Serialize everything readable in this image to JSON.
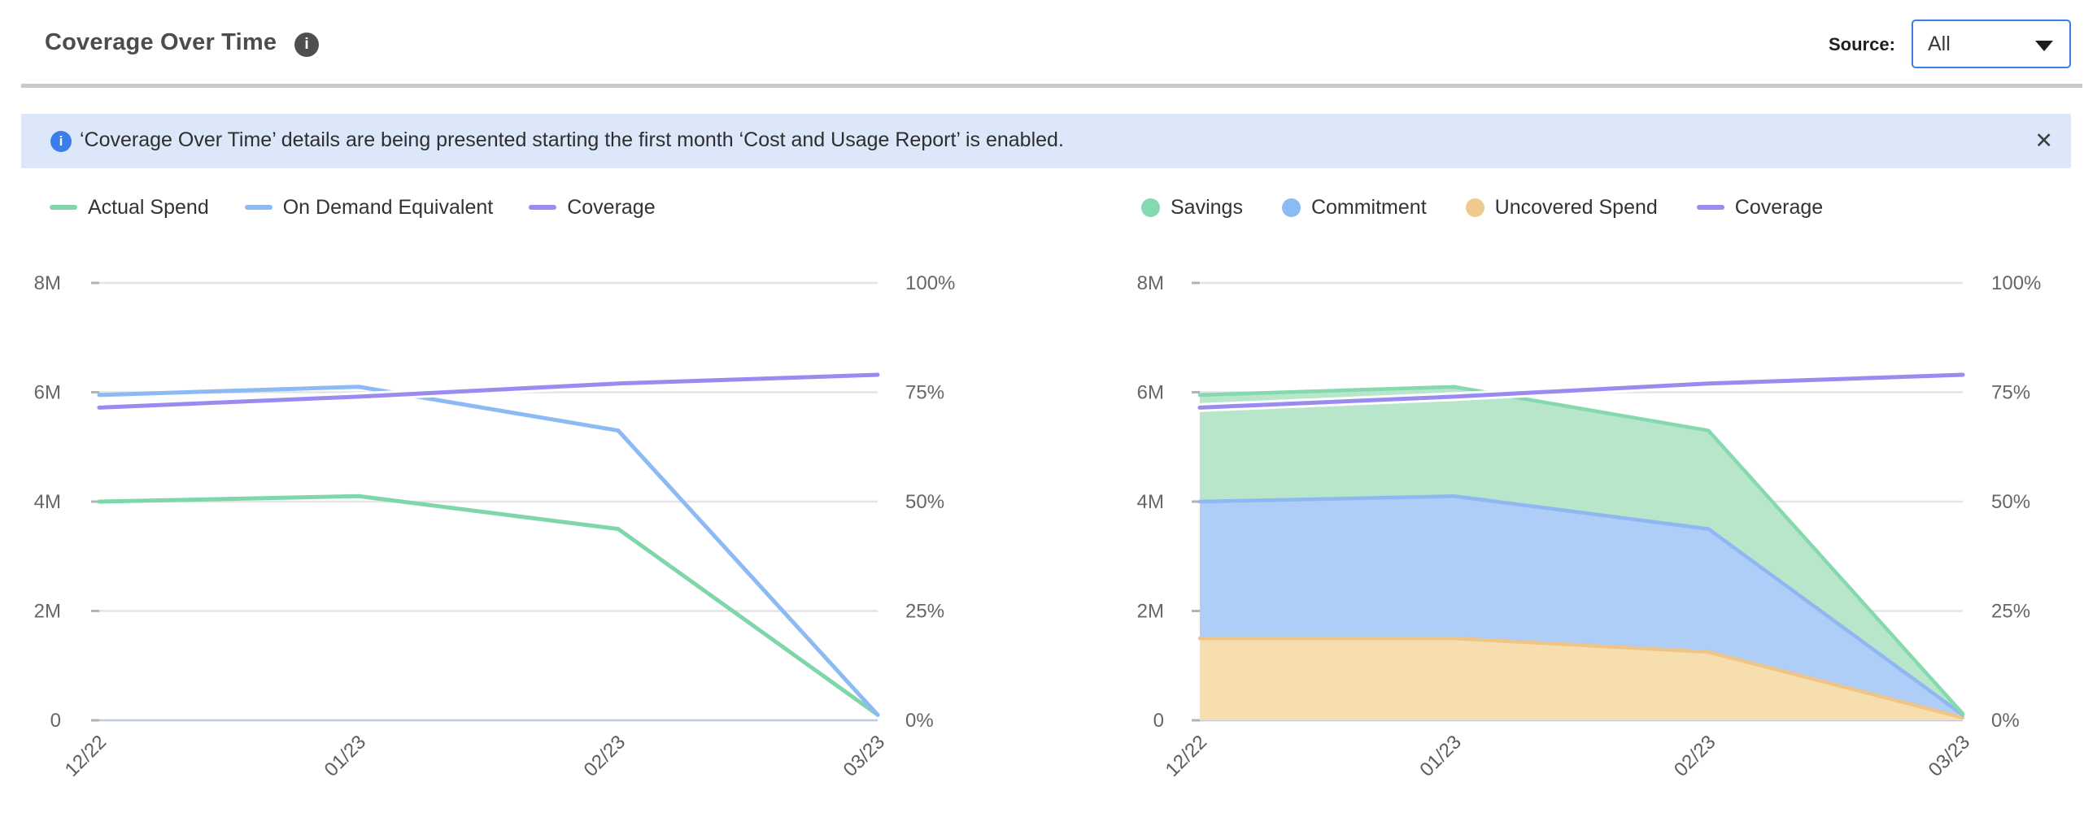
{
  "header": {
    "title": "Coverage Over Time",
    "info_icon": "info-icon",
    "source_label": "Source:",
    "source_value": "All",
    "accent_color": "#3b7fe0"
  },
  "banner": {
    "text": "‘Coverage Over Time’ details are being presented starting the first month ‘Cost and Usage Report’ is enabled.",
    "close_label": "✕",
    "background_color": "#dce8fa",
    "icon_color": "#3c7ee9"
  },
  "chart_data": [
    {
      "type": "line",
      "x": [
        "12/22",
        "01/23",
        "02/23",
        "03/23"
      ],
      "y_left_ticks": [
        "0",
        "2M",
        "4M",
        "6M",
        "8M"
      ],
      "y_right_ticks": [
        "0%",
        "25%",
        "50%",
        "75%",
        "100%"
      ],
      "y_left_max_m": 8,
      "y_right_max_pct": 100,
      "grid": true,
      "legend": [
        {
          "label": "Actual Spend",
          "marker": "line",
          "color": "#7fd7a9"
        },
        {
          "label": "On Demand Equivalent",
          "marker": "line",
          "color": "#8cbaf4"
        },
        {
          "label": "Coverage",
          "marker": "line",
          "color": "#998bef"
        }
      ],
      "series": [
        {
          "name": "Actual Spend",
          "color": "#7fd7a9",
          "axis": "left",
          "unit": "M",
          "values": [
            4.0,
            4.1,
            3.5,
            0.1
          ]
        },
        {
          "name": "On Demand Equivalent",
          "color": "#8cbaf4",
          "axis": "left",
          "unit": "M",
          "values": [
            5.95,
            6.1,
            5.3,
            0.1
          ]
        },
        {
          "name": "Coverage",
          "color": "#998bef",
          "axis": "right",
          "unit": "%",
          "values": [
            71.5,
            74,
            77,
            79
          ],
          "halo": true
        }
      ]
    },
    {
      "type": "area-stacked",
      "x": [
        "12/22",
        "01/23",
        "02/23",
        "03/23"
      ],
      "y_left_ticks": [
        "0",
        "2M",
        "4M",
        "6M",
        "8M"
      ],
      "y_right_ticks": [
        "0%",
        "25%",
        "50%",
        "75%",
        "100%"
      ],
      "y_left_max_m": 8,
      "y_right_max_pct": 100,
      "grid": true,
      "legend": [
        {
          "label": "Savings",
          "marker": "dot",
          "color": "#85d9ae"
        },
        {
          "label": "Commitment",
          "marker": "dot",
          "color": "#8cbaf4"
        },
        {
          "label": "Uncovered Spend",
          "marker": "dot",
          "color": "#f0c98d"
        },
        {
          "label": "Coverage",
          "marker": "line",
          "color": "#998bef"
        }
      ],
      "areas": [
        {
          "name": "Uncovered Spend",
          "fill": "#f6deae",
          "stroke": "#eec489",
          "unit": "M",
          "values": [
            1.5,
            1.5,
            1.25,
            0.05
          ]
        },
        {
          "name": "Commitment",
          "fill": "#aecdf7",
          "stroke": "#8fb7f2",
          "unit": "M",
          "values": [
            2.5,
            2.6,
            2.25,
            0.05
          ]
        },
        {
          "name": "Savings",
          "fill": "#b7e6cb",
          "stroke": "#85d9ae",
          "unit": "M",
          "values": [
            1.95,
            2.0,
            1.8,
            0.02
          ]
        }
      ],
      "series": [
        {
          "name": "Coverage",
          "color": "#998bef",
          "axis": "right",
          "unit": "%",
          "values": [
            71.5,
            74,
            77,
            79
          ],
          "halo": true
        }
      ]
    }
  ],
  "colors": {
    "grid_line": "#e4e4e4",
    "zero_line": "#bfc8e4",
    "tick": "#b3b3b3",
    "axis_text": "#666666",
    "divider": "#c9c9c9"
  }
}
